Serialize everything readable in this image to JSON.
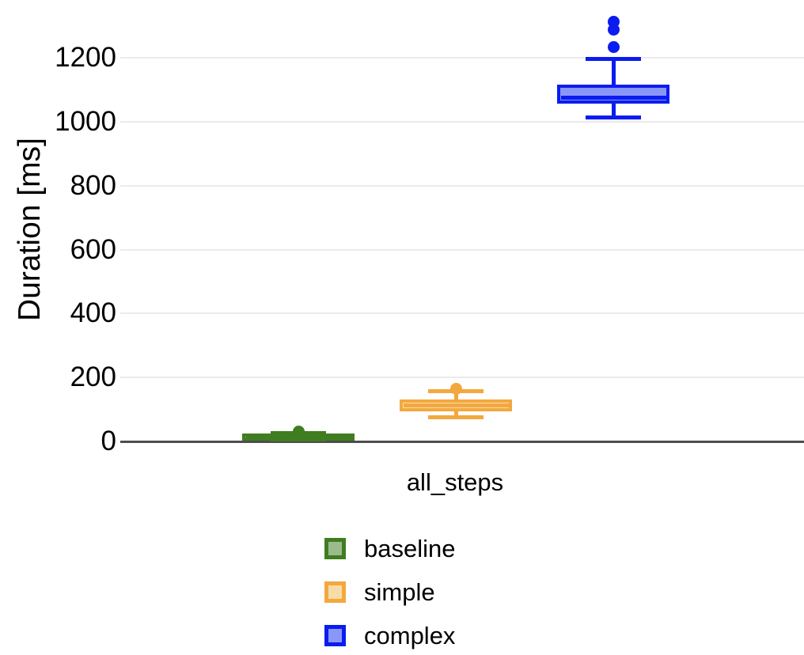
{
  "chart_data": {
    "type": "boxplot",
    "title": "",
    "xlabel": "",
    "ylabel": "Duration [ms]",
    "categories": [
      "all_steps"
    ],
    "y_ticks": [
      0,
      200,
      400,
      600,
      800,
      1000,
      1200
    ],
    "ylim": [
      0,
      1350
    ],
    "grid": "horizontal-light",
    "legend_position": "bottom-center",
    "colors": {
      "gridline": "#ebebeb",
      "axis_line": "#4d4d4d",
      "text": "#000000",
      "background": "#ffffff"
    },
    "series": [
      {
        "name": "baseline",
        "color": "#3f7d20",
        "fill": "#9cbb8d",
        "category": "all_steps",
        "box": {
          "min": 7,
          "q1": 11,
          "median": 16,
          "q3": 25,
          "max": 27,
          "outliers": [
            31
          ]
        }
      },
      {
        "name": "simple",
        "color": "#f3a83f",
        "fill": "#f8dca8",
        "category": "all_steps",
        "box": {
          "min": 75,
          "q1": 94,
          "median": 112,
          "q3": 131,
          "max": 157,
          "outliers": [
            165
          ]
        }
      },
      {
        "name": "complex",
        "color": "#0a1cf0",
        "fill": "#8b97f8",
        "category": "all_steps",
        "box": {
          "min": 1013,
          "q1": 1056,
          "median": 1075,
          "q3": 1115,
          "max": 1197,
          "outliers": [
            1233,
            1287,
            1312
          ]
        }
      }
    ]
  }
}
